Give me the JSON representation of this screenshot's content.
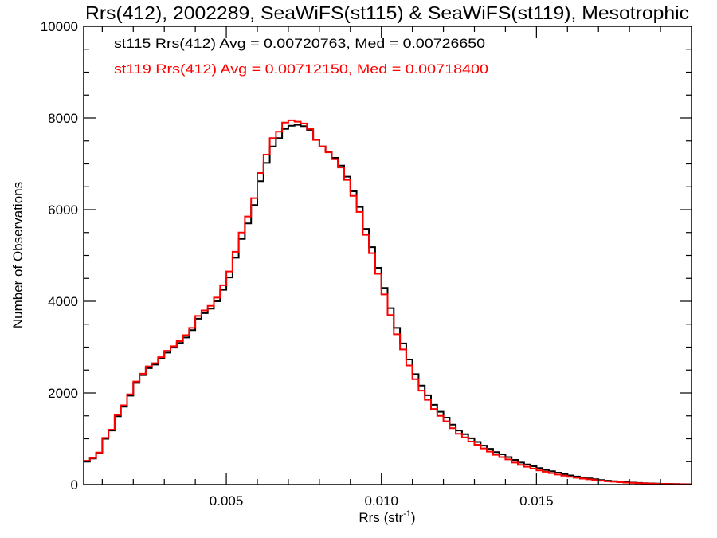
{
  "chart_data": {
    "type": "line",
    "subtype": "step-histogram",
    "title": "Rrs(412), 2002289, SeaWiFS(st115) & SeaWiFS(st119), Mesotrophic",
    "xlabel": "Rrs (str",
    "xlabel_superscript": "-1",
    "xlabel_suffix": ")",
    "ylabel": "Number of Observations",
    "xlim": [
      0.0004,
      0.02
    ],
    "ylim": [
      0,
      10000
    ],
    "xticks": [
      {
        "value": 0.005,
        "label": "0.005"
      },
      {
        "value": 0.01,
        "label": "0.010"
      },
      {
        "value": 0.015,
        "label": "0.015"
      }
    ],
    "x_minor_step": 0.001,
    "yticks": [
      {
        "value": 0,
        "label": "0"
      },
      {
        "value": 2000,
        "label": "2000"
      },
      {
        "value": 4000,
        "label": "4000"
      },
      {
        "value": 6000,
        "label": "6000"
      },
      {
        "value": 8000,
        "label": "8000"
      },
      {
        "value": 10000,
        "label": "10000"
      }
    ],
    "y_minor_step": 500,
    "grid": false,
    "annotations": [
      {
        "text": "st115 Rrs(412) Avg = 0.00720763, Med = 0.00726650",
        "color": "#000000"
      },
      {
        "text": "st119 Rrs(412) Avg = 0.00712150, Med = 0.00718400",
        "color": "#ff0000"
      }
    ],
    "x": [
      0.0004,
      0.0006,
      0.0008,
      0.001,
      0.0012,
      0.0014,
      0.0016,
      0.0018,
      0.002,
      0.0022,
      0.0024,
      0.0026,
      0.0028,
      0.003,
      0.0032,
      0.0034,
      0.0036,
      0.0038,
      0.004,
      0.0042,
      0.0044,
      0.0046,
      0.0048,
      0.005,
      0.0052,
      0.0054,
      0.0056,
      0.0058,
      0.006,
      0.0062,
      0.0064,
      0.0066,
      0.0068,
      0.007,
      0.0072,
      0.0074,
      0.0076,
      0.0078,
      0.008,
      0.0082,
      0.0084,
      0.0086,
      0.0088,
      0.009,
      0.0092,
      0.0094,
      0.0096,
      0.0098,
      0.01,
      0.0102,
      0.0104,
      0.0106,
      0.0108,
      0.011,
      0.0112,
      0.0114,
      0.0116,
      0.0118,
      0.012,
      0.0122,
      0.0124,
      0.0126,
      0.0128,
      0.013,
      0.0132,
      0.0134,
      0.0136,
      0.0138,
      0.014,
      0.0142,
      0.0144,
      0.0146,
      0.0148,
      0.015,
      0.0152,
      0.0154,
      0.0156,
      0.0158,
      0.016,
      0.0162,
      0.0164,
      0.0166,
      0.0168,
      0.017,
      0.0172,
      0.0174,
      0.0176,
      0.0178,
      0.018,
      0.0182,
      0.0184,
      0.0186,
      0.0188,
      0.019,
      0.0192,
      0.0194,
      0.0196,
      0.0198
    ],
    "series": [
      {
        "name": "st115",
        "color": "#000000",
        "values": [
          500,
          570,
          690,
          1000,
          1180,
          1490,
          1700,
          1940,
          2220,
          2390,
          2540,
          2620,
          2750,
          2880,
          2990,
          3090,
          3210,
          3370,
          3620,
          3740,
          3840,
          4000,
          4250,
          4520,
          4950,
          5360,
          5700,
          6100,
          6620,
          7020,
          7380,
          7560,
          7760,
          7830,
          7850,
          7820,
          7740,
          7530,
          7380,
          7270,
          7130,
          6960,
          6720,
          6400,
          6060,
          5580,
          5180,
          4730,
          4290,
          3850,
          3420,
          3080,
          2730,
          2410,
          2160,
          1950,
          1740,
          1590,
          1460,
          1310,
          1180,
          1100,
          1010,
          930,
          850,
          780,
          710,
          660,
          600,
          540,
          480,
          440,
          400,
          360,
          320,
          290,
          260,
          230,
          200,
          175,
          150,
          135,
          118,
          100,
          85,
          74,
          62,
          52,
          44,
          37,
          31,
          26,
          22,
          18,
          15,
          12,
          10,
          8
        ]
      },
      {
        "name": "st119",
        "color": "#ff0000",
        "values": [
          520,
          580,
          700,
          1020,
          1200,
          1520,
          1730,
          1970,
          2250,
          2420,
          2580,
          2650,
          2780,
          2920,
          3020,
          3130,
          3260,
          3420,
          3680,
          3800,
          3900,
          4080,
          4350,
          4650,
          5080,
          5500,
          5850,
          6250,
          6800,
          7200,
          7560,
          7700,
          7900,
          7950,
          7920,
          7880,
          7760,
          7520,
          7380,
          7250,
          7100,
          6920,
          6650,
          6300,
          5950,
          5450,
          5050,
          4600,
          4150,
          3700,
          3280,
          2950,
          2600,
          2300,
          2050,
          1850,
          1650,
          1500,
          1380,
          1230,
          1110,
          1030,
          940,
          870,
          790,
          720,
          650,
          600,
          550,
          480,
          430,
          390,
          350,
          310,
          280,
          250,
          220,
          195,
          170,
          150,
          130,
          115,
          100,
          85,
          72,
          62,
          52,
          44,
          37,
          31,
          26,
          22,
          18,
          15,
          12,
          10,
          8,
          6
        ]
      }
    ]
  }
}
